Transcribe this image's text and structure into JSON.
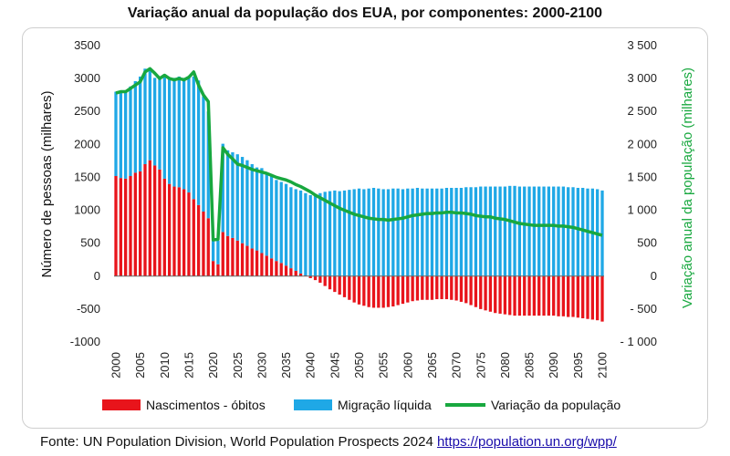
{
  "chart_data": {
    "type": "bar",
    "title": "Variação anual da população dos EUA, por componentes: 2000-2100",
    "ylabel": "Número de pessoas (milhares)",
    "ylabel_right": "Variação anual da população (milhares)",
    "ylim": [
      -1000,
      3500
    ],
    "y_ticks_left": [
      "3500",
      "3000",
      "2500",
      "2000",
      "1500",
      "1000",
      "500",
      "0",
      "-500",
      "-1000"
    ],
    "y_ticks_right": [
      "3 500",
      "3 000",
      "2 500",
      "2 000",
      "1 500",
      "1 000",
      "500",
      "0",
      "- 500",
      "- 1 000"
    ],
    "x_ticks": [
      "2000",
      "2005",
      "2010",
      "2015",
      "2020",
      "2025",
      "2030",
      "2035",
      "2040",
      "2045",
      "2050",
      "2055",
      "2060",
      "2065",
      "2070",
      "2075",
      "2080",
      "2085",
      "2090",
      "2095",
      "2100"
    ],
    "years_start": 2000,
    "years_end": 2100,
    "grid": false,
    "legend_position": "bottom",
    "colors": {
      "natural": "#e8141b",
      "migration": "#1fa8e6",
      "change": "#18a83f"
    },
    "series": [
      {
        "name": "Nascimentos - óbitos",
        "type": "bar",
        "values": [
          1520,
          1490,
          1480,
          1520,
          1570,
          1590,
          1700,
          1760,
          1680,
          1620,
          1480,
          1400,
          1360,
          1350,
          1320,
          1270,
          1170,
          1080,
          980,
          880,
          230,
          180,
          670,
          610,
          580,
          540,
          500,
          460,
          420,
          390,
          350,
          310,
          270,
          230,
          200,
          160,
          120,
          80,
          40,
          10,
          -30,
          -60,
          -100,
          -150,
          -200,
          -240,
          -280,
          -320,
          -360,
          -400,
          -430,
          -450,
          -470,
          -480,
          -480,
          -480,
          -470,
          -460,
          -440,
          -420,
          -400,
          -380,
          -370,
          -360,
          -360,
          -360,
          -350,
          -350,
          -350,
          -360,
          -370,
          -390,
          -410,
          -440,
          -470,
          -500,
          -520,
          -540,
          -560,
          -570,
          -580,
          -590,
          -600,
          -600,
          -600,
          -600,
          -600,
          -600,
          -600,
          -600,
          -600,
          -610,
          -610,
          -620,
          -620,
          -630,
          -640,
          -650,
          -660,
          -670,
          -690
        ]
      },
      {
        "name": "Migração líquida",
        "type": "bar",
        "values": [
          1280,
          1290,
          1310,
          1360,
          1390,
          1440,
          1450,
          1380,
          1330,
          1380,
          1540,
          1610,
          1650,
          1680,
          1690,
          1740,
          1860,
          1890,
          1750,
          1620,
          320,
          360,
          1340,
          1300,
          1300,
          1310,
          1310,
          1300,
          1280,
          1260,
          1290,
          1250,
          1250,
          1230,
          1230,
          1240,
          1230,
          1240,
          1260,
          1250,
          1230,
          1230,
          1260,
          1280,
          1290,
          1300,
          1290,
          1300,
          1310,
          1320,
          1330,
          1320,
          1330,
          1340,
          1330,
          1320,
          1320,
          1330,
          1330,
          1320,
          1330,
          1330,
          1340,
          1330,
          1330,
          1330,
          1330,
          1330,
          1340,
          1340,
          1340,
          1340,
          1350,
          1350,
          1350,
          1360,
          1360,
          1360,
          1360,
          1360,
          1360,
          1370,
          1370,
          1360,
          1360,
          1360,
          1360,
          1360,
          1360,
          1360,
          1360,
          1360,
          1360,
          1350,
          1350,
          1340,
          1340,
          1330,
          1330,
          1320,
          1300
        ]
      },
      {
        "name": "Variação da população",
        "type": "line",
        "values": [
          2780,
          2800,
          2800,
          2850,
          2900,
          2950,
          3100,
          3150,
          3080,
          3000,
          3050,
          3000,
          2980,
          3000,
          2980,
          3020,
          3100,
          2900,
          2750,
          2650,
          550,
          560,
          1950,
          1850,
          1780,
          1700,
          1680,
          1650,
          1620,
          1600,
          1580,
          1560,
          1530,
          1500,
          1480,
          1460,
          1430,
          1390,
          1360,
          1320,
          1280,
          1230,
          1190,
          1150,
          1110,
          1070,
          1030,
          1000,
          970,
          940,
          920,
          900,
          880,
          870,
          860,
          860,
          850,
          860,
          870,
          880,
          900,
          920,
          930,
          940,
          950,
          950,
          960,
          960,
          970,
          970,
          960,
          960,
          950,
          940,
          920,
          910,
          900,
          900,
          880,
          870,
          860,
          840,
          820,
          800,
          790,
          780,
          770,
          770,
          770,
          770,
          770,
          760,
          760,
          750,
          740,
          720,
          700,
          680,
          660,
          640,
          620
        ]
      }
    ]
  },
  "footer": {
    "source_text": "Fonte: UN Population Division, World Population Prospects 2024 ",
    "source_link": "https://population.un.org/wpp/"
  }
}
